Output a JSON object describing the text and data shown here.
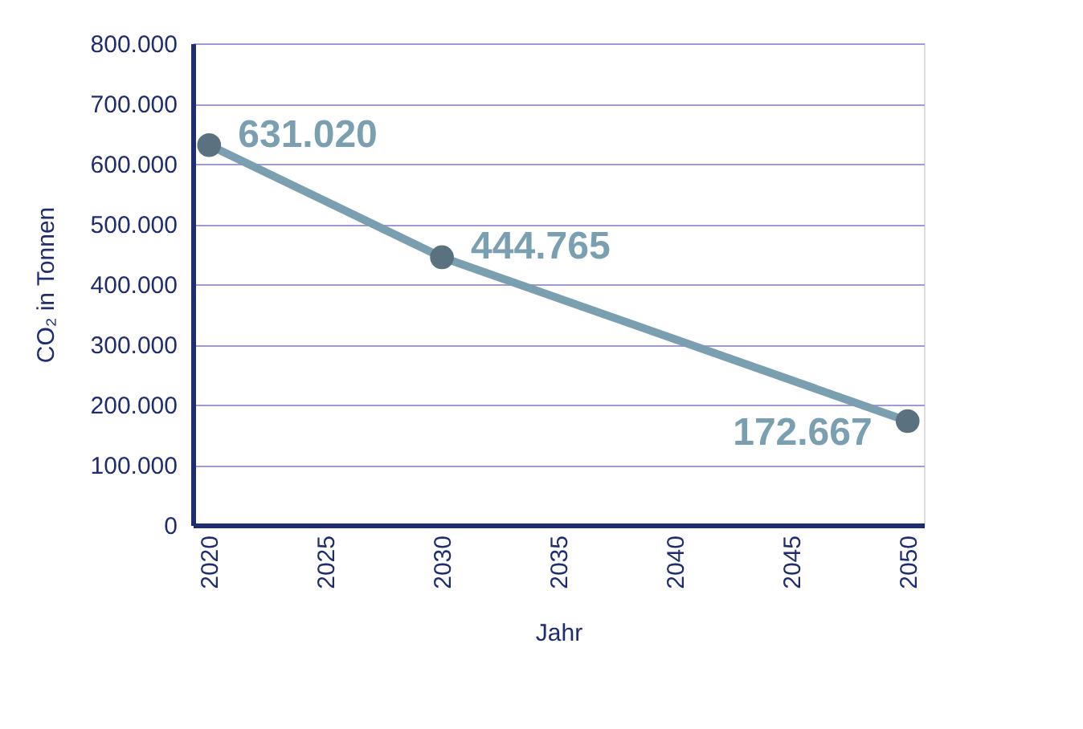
{
  "chart_data": {
    "type": "line",
    "xlabel": "Jahr",
    "ylabel": "CO₂ in Tonnen",
    "x": [
      2020,
      2030,
      2050
    ],
    "series": [
      {
        "color": "#7a9fb1",
        "values": [
          631020,
          444765,
          172667
        ],
        "value_labels": [
          "631.020",
          "444.765",
          "172.667"
        ]
      }
    ],
    "xlim": [
      2019.3,
      2050.7
    ],
    "xticks": [
      2020,
      2025,
      2030,
      2035,
      2040,
      2045,
      2050
    ],
    "ylim": [
      0,
      800000
    ],
    "yticks": [
      {
        "value": 0,
        "label": "0"
      },
      {
        "value": 100000,
        "label": "100.000"
      },
      {
        "value": 200000,
        "label": "200.000"
      },
      {
        "value": 300000,
        "label": "300.000"
      },
      {
        "value": 400000,
        "label": "400.000"
      },
      {
        "value": 500000,
        "label": "500.000"
      },
      {
        "value": 600000,
        "label": "600.000"
      },
      {
        "value": 700000,
        "label": "700.000"
      },
      {
        "value": 800000,
        "label": "800.000"
      }
    ],
    "grid": "y",
    "marker": "circle",
    "line_style": "solid"
  }
}
